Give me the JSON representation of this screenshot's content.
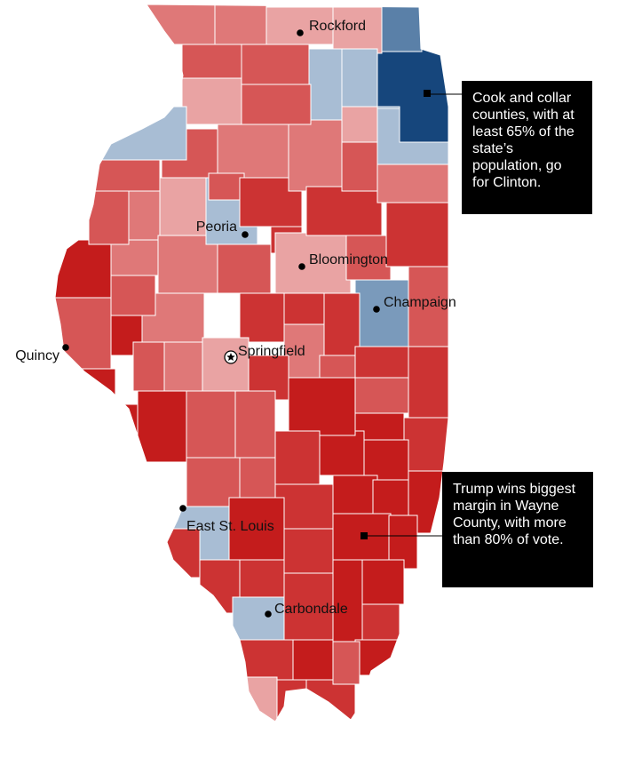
{
  "colors": {
    "safe_red": "#c41c1c",
    "strong_red": "#cc3333",
    "lean_red": "#d65656",
    "soft_red": "#df7878",
    "light_red": "#e9a3a3",
    "light_blue": "#a8bdd4",
    "mid_blue": "#7a9abb",
    "blue": "#5a80a8",
    "dark_blue": "#16467c",
    "border": "#ffffff"
  },
  "cities": [
    {
      "id": "rockford",
      "label": "Rockford",
      "icon": "dot-icon"
    },
    {
      "id": "peoria",
      "label": "Peoria",
      "icon": "dot-icon"
    },
    {
      "id": "bloomington",
      "label": "Bloomington",
      "icon": "dot-icon"
    },
    {
      "id": "champaign",
      "label": "Champaign",
      "icon": "dot-icon"
    },
    {
      "id": "quincy",
      "label": "Quincy",
      "icon": "dot-icon"
    },
    {
      "id": "springfield",
      "label": "Springfield",
      "icon": "capital-star-icon"
    },
    {
      "id": "east_st_louis",
      "label": "East St. Louis",
      "icon": "dot-icon"
    },
    {
      "id": "carbondale",
      "label": "Carbondale",
      "icon": "dot-icon"
    }
  ],
  "annotations": {
    "cook": "Cook and collar counties, with at least 65% of the state’s population, go for Clinton.",
    "wayne": "Trump wins biggest margin in Wayne County, with more than 80% of vote."
  }
}
